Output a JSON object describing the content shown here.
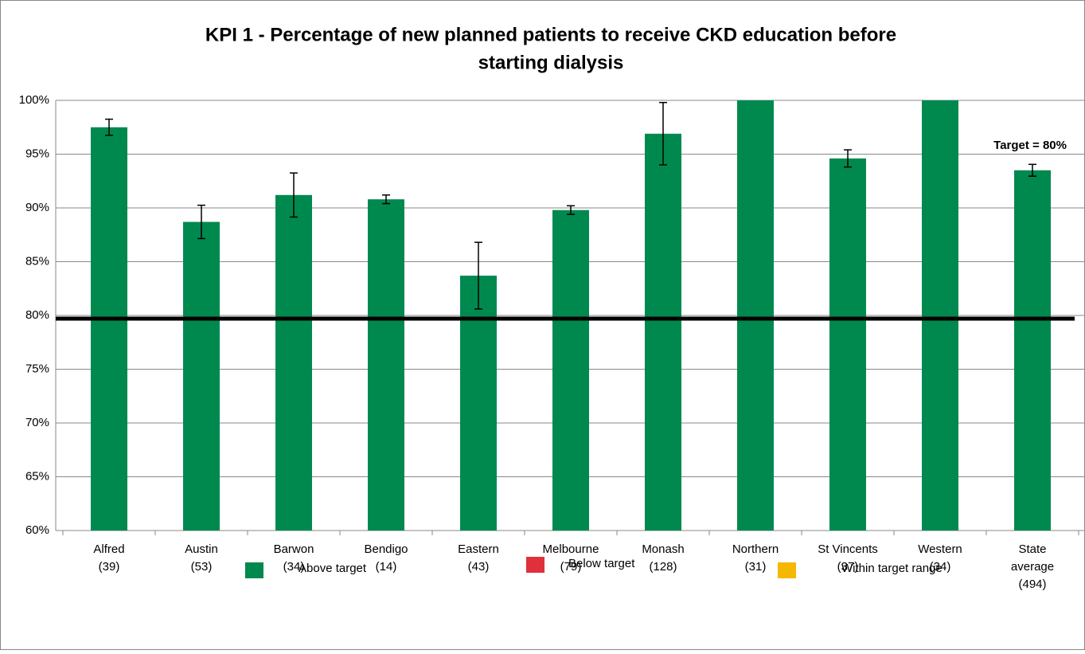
{
  "chart_data": {
    "type": "bar",
    "title": [
      "KPI 1 - Percentage of new planned patients to receive CKD education before",
      "starting dialysis"
    ],
    "categories": [
      [
        "Alfred",
        "(39)"
      ],
      [
        "Austin",
        "(53)"
      ],
      [
        "Barwon",
        "(34)"
      ],
      [
        "Bendigo",
        "(14)"
      ],
      [
        "Eastern",
        "(43)"
      ],
      [
        "Melbourne",
        "(79)"
      ],
      [
        "Monash",
        "(128)"
      ],
      [
        "Northern",
        "(31)"
      ],
      [
        "St Vincents",
        "(37)"
      ],
      [
        "Western",
        "(34)"
      ],
      [
        "State",
        "average",
        "(494)"
      ]
    ],
    "values": [
      97.5,
      88.7,
      91.2,
      90.8,
      83.7,
      89.8,
      96.9,
      100,
      94.6,
      100,
      93.5
    ],
    "errors": [
      0.75,
      1.55,
      2.05,
      0.4,
      3.1,
      0.4,
      2.9,
      null,
      0.8,
      null,
      0.55
    ],
    "color": "#00894f",
    "ylim": [
      60,
      100
    ],
    "yticks": [
      {
        "value": 60,
        "label": "60%"
      },
      {
        "value": 65,
        "label": "65%"
      },
      {
        "value": 70,
        "label": "70%"
      },
      {
        "value": 75,
        "label": "75%"
      },
      {
        "value": 80,
        "label": "80%"
      },
      {
        "value": 85,
        "label": "85%"
      },
      {
        "value": 90,
        "label": "90%"
      },
      {
        "value": 95,
        "label": "95%"
      },
      {
        "value": 100,
        "label": "100%"
      }
    ],
    "grid": true,
    "target": {
      "value": 80,
      "label": "Target = 80%"
    },
    "legend": [
      {
        "name": "Above target",
        "color": "#00894f"
      },
      {
        "name": "Below target",
        "color": "#e0303c"
      },
      {
        "name": "Within target range",
        "color": "#f5b800"
      }
    ]
  }
}
